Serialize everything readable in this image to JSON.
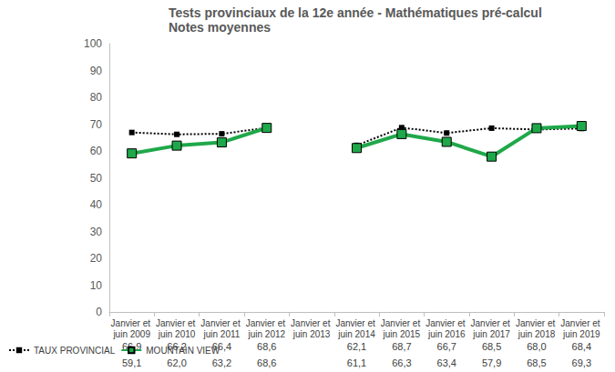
{
  "chart_data": {
    "type": "line",
    "title": "Tests provinciaux de la 12e année - Mathématiques pré-calcul",
    "subtitle": "Notes moyennes",
    "categories": [
      "Janvier et juin 2009",
      "Janvier et juin 2010",
      "Janvier et juin 2011",
      "Janvier et juin 2012",
      "Janvier et juin 2013",
      "Janvier et juin 2014",
      "Janvier et juin 2015",
      "Janvier et juin 2016",
      "Janvier et juin 2017",
      "Janvier et juin 2018",
      "Janvier et juin 2019"
    ],
    "series": [
      {
        "name": "TAUX PROVINCIAL",
        "color": "#000000",
        "marker": "square",
        "line_style": "dotted",
        "values": [
          66.9,
          66.2,
          66.4,
          68.6,
          null,
          62.1,
          68.7,
          66.7,
          68.5,
          68.0,
          68.4
        ],
        "value_labels": [
          "66,9",
          "66,2",
          "66,4",
          "68,6",
          null,
          "62,1",
          "68,7",
          "66,7",
          "68,5",
          "68,0",
          "68,4"
        ]
      },
      {
        "name": "MOUNTAIN VIEW",
        "color": "#1fa84a",
        "marker": "square",
        "line_style": "solid",
        "values": [
          59.1,
          62.0,
          63.2,
          68.6,
          null,
          61.1,
          66.3,
          63.4,
          57.9,
          68.5,
          69.3
        ],
        "value_labels": [
          "59,1",
          "62,0",
          "63,2",
          "68,6",
          null,
          "61,1",
          "66,3",
          "63,4",
          "57,9",
          "68,5",
          "69,3"
        ]
      }
    ],
    "ylim": [
      0,
      100
    ],
    "yticks": [
      0,
      10,
      20,
      30,
      40,
      50,
      60,
      70,
      80,
      90,
      100
    ],
    "grid": false,
    "legend": "bottom-left"
  }
}
